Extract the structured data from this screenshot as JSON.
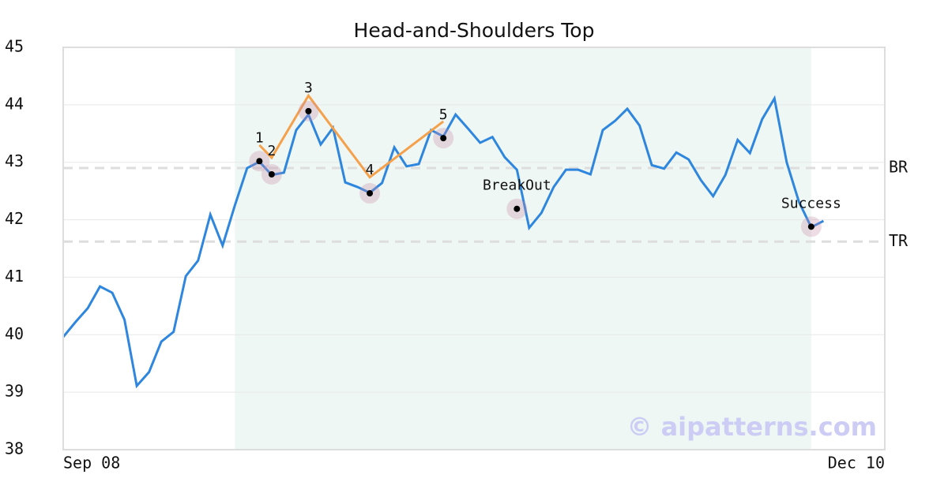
{
  "chart_data": {
    "type": "line",
    "title": "Head-and-Shoulders Top",
    "series": [
      {
        "color": "#2e86de",
        "values": [
          39.96,
          40.22,
          40.46,
          40.84,
          40.73,
          40.26,
          39.11,
          39.35,
          39.88,
          40.05,
          41.02,
          41.29,
          42.09,
          41.55,
          42.25,
          42.9,
          43.01,
          42.78,
          42.82,
          43.56,
          43.83,
          43.31,
          43.6,
          42.65,
          42.57,
          42.47,
          42.64,
          43.26,
          42.93,
          42.97,
          43.56,
          43.45,
          43.83,
          43.59,
          43.34,
          43.44,
          43.09,
          42.87,
          41.86,
          42.12,
          42.57,
          42.87,
          42.87,
          42.79,
          43.56,
          43.72,
          43.93,
          43.64,
          42.95,
          42.89,
          43.17,
          43.05,
          42.69,
          42.41,
          42.78,
          43.39,
          43.16,
          43.75,
          44.11,
          43.0,
          42.31,
          41.87,
          41.98
        ]
      }
    ],
    "pattern": {
      "color": "#f5a04a",
      "x": [
        16,
        17,
        20,
        25,
        31
      ],
      "values": [
        43.3,
        43.08,
        44.16,
        42.74,
        43.71
      ]
    },
    "points": [
      {
        "label": "1",
        "x": 16,
        "value": 43.02
      },
      {
        "label": "2",
        "x": 17,
        "value": 42.79
      },
      {
        "label": "3",
        "x": 20,
        "value": 43.89
      },
      {
        "label": "4",
        "x": 25,
        "value": 42.46
      },
      {
        "label": "5",
        "x": 31,
        "value": 43.42
      },
      {
        "label": "BreakOut",
        "x": 37,
        "value": 42.19
      },
      {
        "label": "Success",
        "x": 61,
        "value": 41.88
      }
    ],
    "levels": [
      {
        "label": "BR",
        "value": 42.9
      },
      {
        "label": "TR",
        "value": 41.62
      }
    ],
    "highlight": [
      14,
      61
    ],
    "xlim": [
      0,
      67
    ],
    "xticks": [
      {
        "value": 0,
        "label": "Sep 08"
      },
      {
        "value": 67,
        "label": "Dec 10"
      }
    ],
    "ylim": [
      38,
      45
    ],
    "yticks": [
      38,
      39,
      40,
      41,
      42,
      43,
      44,
      45
    ],
    "grid": true,
    "watermark": "© aipatterns.com"
  }
}
